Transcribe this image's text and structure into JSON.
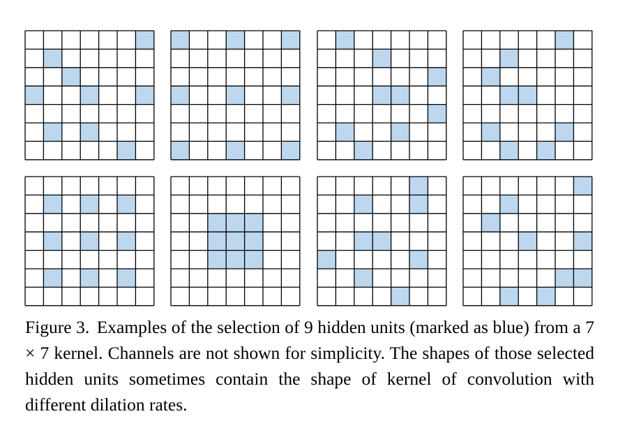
{
  "figure": {
    "label": "Figure 3.",
    "caption": "Examples of the selection of 9 hidden units (marked as blue) from a 7 × 7 kernel. Channels are not shown for simplicity. The shapes of those selected hidden units sometimes contain the shape of kernel of convolution with different dilation rates."
  },
  "kernel": {
    "rows": 7,
    "cols": 7,
    "selected_count": 9
  },
  "colors": {
    "selected": "#bdd7ee",
    "empty": "#ffffff",
    "grid_line": "#000000"
  },
  "grids": [
    {
      "selected": [
        [
          0,
          6
        ],
        [
          1,
          1
        ],
        [
          2,
          2
        ],
        [
          3,
          0
        ],
        [
          3,
          3
        ],
        [
          3,
          6
        ],
        [
          5,
          1
        ],
        [
          5,
          3
        ],
        [
          6,
          5
        ]
      ]
    },
    {
      "selected": [
        [
          0,
          0
        ],
        [
          0,
          3
        ],
        [
          0,
          6
        ],
        [
          3,
          0
        ],
        [
          3,
          3
        ],
        [
          3,
          6
        ],
        [
          6,
          0
        ],
        [
          6,
          3
        ],
        [
          6,
          6
        ]
      ]
    },
    {
      "selected": [
        [
          0,
          1
        ],
        [
          1,
          3
        ],
        [
          2,
          6
        ],
        [
          3,
          3
        ],
        [
          3,
          4
        ],
        [
          4,
          6
        ],
        [
          5,
          1
        ],
        [
          5,
          4
        ],
        [
          6,
          2
        ]
      ]
    },
    {
      "selected": [
        [
          0,
          5
        ],
        [
          1,
          2
        ],
        [
          2,
          1
        ],
        [
          3,
          2
        ],
        [
          3,
          3
        ],
        [
          5,
          1
        ],
        [
          5,
          5
        ],
        [
          6,
          2
        ],
        [
          6,
          4
        ]
      ]
    },
    {
      "selected": [
        [
          1,
          1
        ],
        [
          1,
          3
        ],
        [
          1,
          5
        ],
        [
          3,
          1
        ],
        [
          3,
          3
        ],
        [
          3,
          5
        ],
        [
          5,
          1
        ],
        [
          5,
          3
        ],
        [
          5,
          5
        ]
      ]
    },
    {
      "selected": [
        [
          2,
          2
        ],
        [
          2,
          3
        ],
        [
          2,
          4
        ],
        [
          3,
          2
        ],
        [
          3,
          3
        ],
        [
          3,
          4
        ],
        [
          4,
          2
        ],
        [
          4,
          3
        ],
        [
          4,
          4
        ]
      ]
    },
    {
      "selected": [
        [
          0,
          5
        ],
        [
          1,
          2
        ],
        [
          1,
          5
        ],
        [
          3,
          2
        ],
        [
          3,
          3
        ],
        [
          4,
          0
        ],
        [
          4,
          5
        ],
        [
          5,
          2
        ],
        [
          6,
          4
        ]
      ]
    },
    {
      "selected": [
        [
          0,
          6
        ],
        [
          1,
          2
        ],
        [
          2,
          1
        ],
        [
          3,
          3
        ],
        [
          3,
          6
        ],
        [
          5,
          5
        ],
        [
          5,
          6
        ],
        [
          6,
          2
        ],
        [
          6,
          4
        ]
      ]
    }
  ]
}
